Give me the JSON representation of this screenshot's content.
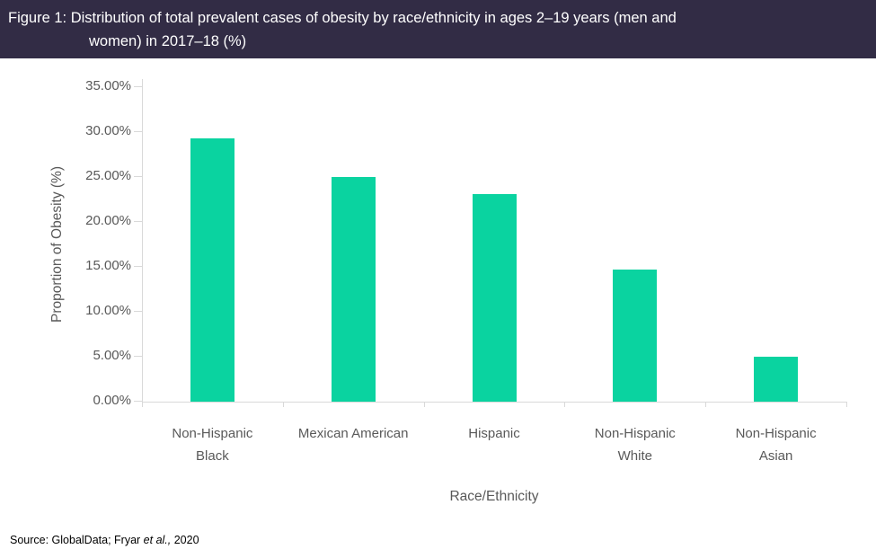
{
  "header": {
    "title_line1": "Figure 1: Distribution of total prevalent cases of obesity by race/ethnicity in ages 2–19 years (men and",
    "title_line2": "women) in 2017–18 (%)",
    "background_color": "#322c45",
    "text_color": "#ffffff"
  },
  "chart_data": {
    "type": "bar",
    "title": "Figure 1: Distribution of total prevalent cases of obesity by race/ethnicity in ages 2–19 years (men and women) in 2017–18 (%)",
    "categories": [
      "Non-Hispanic Black",
      "Mexican American",
      "Hispanic",
      "Non-Hispanic White",
      "Non-Hispanic Asian"
    ],
    "values": [
      29.2,
      24.9,
      23.0,
      14.7,
      5.0
    ],
    "xlabel": "Race/Ethnicity",
    "ylabel": "Proportion of Obesity (%)",
    "ylim": [
      0,
      35
    ],
    "ytick_interval": 5,
    "ytick_labels": [
      "35.00%",
      "30.00%",
      "25.00%",
      "20.00%",
      "15.00%",
      "10.00%",
      "5.00%",
      "0.00%"
    ],
    "bar_color": "#0ad3a0",
    "axis_color": "#d9d9d9",
    "tick_label_color": "#595959",
    "grid": false,
    "legend": "none"
  },
  "source": {
    "prefix": "Source: GlobalData; Fryar ",
    "italic": "et al.,",
    "suffix": " 2020"
  }
}
